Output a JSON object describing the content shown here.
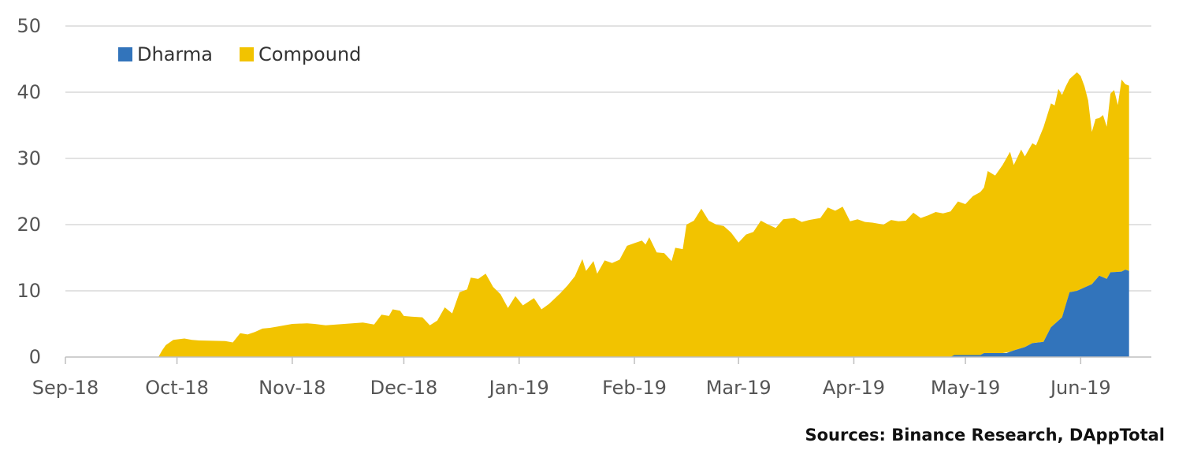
{
  "chart_data": {
    "type": "area",
    "stacked": true,
    "x_axis_labels": [
      "Sep-18",
      "Oct-18",
      "Nov-18",
      "Dec-18",
      "Jan-19",
      "Feb-19",
      "Mar-19",
      "Apr-19",
      "May-19",
      "Jun-19"
    ],
    "ylim": [
      0,
      50
    ],
    "y_ticks": [
      0,
      10,
      20,
      30,
      40,
      50
    ],
    "grid": true,
    "legend_position": "top-left",
    "colors": {
      "Dharma": "#3274bb",
      "Compound": "#f2c300"
    },
    "series": [
      {
        "name": "Dharma",
        "color": "#3274bb",
        "points": [
          [
            "2018-09-01",
            0
          ],
          [
            "2019-04-27",
            0
          ],
          [
            "2019-04-28",
            0.3
          ],
          [
            "2019-05-05",
            0.3
          ],
          [
            "2019-05-06",
            0.6
          ],
          [
            "2019-05-12",
            0.6
          ],
          [
            "2019-05-14",
            1.0
          ],
          [
            "2019-05-17",
            1.5
          ],
          [
            "2019-05-19",
            2.1
          ],
          [
            "2019-05-22",
            2.3
          ],
          [
            "2019-05-24",
            4.5
          ],
          [
            "2019-05-27",
            6.0
          ],
          [
            "2019-05-29",
            9.8
          ],
          [
            "2019-05-31",
            10.0
          ],
          [
            "2019-06-02",
            10.5
          ],
          [
            "2019-06-04",
            11.0
          ],
          [
            "2019-06-06",
            12.3
          ],
          [
            "2019-06-08",
            11.8
          ],
          [
            "2019-06-09",
            12.8
          ],
          [
            "2019-06-12",
            12.9
          ],
          [
            "2019-06-13",
            13.2
          ],
          [
            "2019-06-14",
            13.0
          ]
        ]
      },
      {
        "name": "Compound",
        "color": "#f2c300",
        "points": [
          [
            "2018-09-01",
            0
          ],
          [
            "2018-09-26",
            0
          ],
          [
            "2018-09-27",
            1.0
          ],
          [
            "2018-09-28",
            1.8
          ],
          [
            "2018-09-30",
            2.6
          ],
          [
            "2018-10-03",
            2.8
          ],
          [
            "2018-10-05",
            2.6
          ],
          [
            "2018-10-07",
            2.5
          ],
          [
            "2018-10-14",
            2.4
          ],
          [
            "2018-10-16",
            2.2
          ],
          [
            "2018-10-18",
            3.6
          ],
          [
            "2018-10-20",
            3.4
          ],
          [
            "2018-10-22",
            3.8
          ],
          [
            "2018-10-24",
            4.3
          ],
          [
            "2018-10-26",
            4.4
          ],
          [
            "2018-10-28",
            4.6
          ],
          [
            "2018-11-01",
            5.0
          ],
          [
            "2018-11-05",
            5.1
          ],
          [
            "2018-11-07",
            5.0
          ],
          [
            "2018-11-10",
            4.8
          ],
          [
            "2018-11-15",
            5.0
          ],
          [
            "2018-11-20",
            5.2
          ],
          [
            "2018-11-23",
            4.9
          ],
          [
            "2018-11-25",
            6.4
          ],
          [
            "2018-11-27",
            6.2
          ],
          [
            "2018-11-28",
            7.2
          ],
          [
            "2018-11-30",
            7.0
          ],
          [
            "2018-12-01",
            6.2
          ],
          [
            "2018-12-03",
            6.1
          ],
          [
            "2018-12-06",
            6.0
          ],
          [
            "2018-12-08",
            4.8
          ],
          [
            "2018-12-10",
            5.5
          ],
          [
            "2018-12-12",
            7.5
          ],
          [
            "2018-12-14",
            6.6
          ],
          [
            "2018-12-16",
            9.8
          ],
          [
            "2018-12-18",
            10.2
          ],
          [
            "2018-12-19",
            12.0
          ],
          [
            "2018-12-21",
            11.8
          ],
          [
            "2018-12-23",
            12.6
          ],
          [
            "2018-12-25",
            10.6
          ],
          [
            "2018-12-27",
            9.5
          ],
          [
            "2018-12-29",
            7.4
          ],
          [
            "2018-12-31",
            9.2
          ],
          [
            "2019-01-02",
            7.8
          ],
          [
            "2019-01-05",
            8.9
          ],
          [
            "2019-01-07",
            7.2
          ],
          [
            "2019-01-09",
            8.0
          ],
          [
            "2019-01-12",
            9.6
          ],
          [
            "2019-01-14",
            10.8
          ],
          [
            "2019-01-16",
            12.2
          ],
          [
            "2019-01-18",
            14.8
          ],
          [
            "2019-01-19",
            13.0
          ],
          [
            "2019-01-21",
            14.5
          ],
          [
            "2019-01-22",
            12.6
          ],
          [
            "2019-01-24",
            14.6
          ],
          [
            "2019-01-26",
            14.2
          ],
          [
            "2019-01-28",
            14.7
          ],
          [
            "2019-01-30",
            16.8
          ],
          [
            "2019-02-01",
            17.2
          ],
          [
            "2019-02-03",
            17.6
          ],
          [
            "2019-02-04",
            17.0
          ],
          [
            "2019-02-05",
            18.1
          ],
          [
            "2019-02-07",
            15.8
          ],
          [
            "2019-02-09",
            15.7
          ],
          [
            "2019-02-11",
            14.5
          ],
          [
            "2019-02-12",
            16.5
          ],
          [
            "2019-02-14",
            16.3
          ],
          [
            "2019-02-15",
            20.0
          ],
          [
            "2019-02-17",
            20.6
          ],
          [
            "2019-02-19",
            22.4
          ],
          [
            "2019-02-21",
            20.6
          ],
          [
            "2019-02-23",
            20.0
          ],
          [
            "2019-02-25",
            19.8
          ],
          [
            "2019-02-27",
            18.8
          ],
          [
            "2019-03-01",
            17.3
          ],
          [
            "2019-03-03",
            18.5
          ],
          [
            "2019-03-05",
            18.9
          ],
          [
            "2019-03-07",
            20.6
          ],
          [
            "2019-03-09",
            20.0
          ],
          [
            "2019-03-11",
            19.5
          ],
          [
            "2019-03-13",
            20.8
          ],
          [
            "2019-03-16",
            21.0
          ],
          [
            "2019-03-18",
            20.4
          ],
          [
            "2019-03-20",
            20.7
          ],
          [
            "2019-03-23",
            21.0
          ],
          [
            "2019-03-25",
            22.6
          ],
          [
            "2019-03-27",
            22.1
          ],
          [
            "2019-03-29",
            22.7
          ],
          [
            "2019-03-31",
            20.5
          ],
          [
            "2019-04-02",
            20.8
          ],
          [
            "2019-04-04",
            20.4
          ],
          [
            "2019-04-06",
            20.3
          ],
          [
            "2019-04-09",
            20.0
          ],
          [
            "2019-04-11",
            20.7
          ],
          [
            "2019-04-13",
            20.5
          ],
          [
            "2019-04-15",
            20.6
          ],
          [
            "2019-04-17",
            21.8
          ],
          [
            "2019-04-19",
            21.0
          ],
          [
            "2019-04-21",
            21.4
          ],
          [
            "2019-04-23",
            21.9
          ],
          [
            "2019-04-25",
            21.7
          ],
          [
            "2019-04-27",
            22.0
          ],
          [
            "2019-04-29",
            23.2
          ],
          [
            "2019-05-01",
            22.8
          ],
          [
            "2019-05-03",
            24.0
          ],
          [
            "2019-05-05",
            24.6
          ],
          [
            "2019-05-06",
            25.0
          ],
          [
            "2019-05-07",
            27.5
          ],
          [
            "2019-05-09",
            26.8
          ],
          [
            "2019-05-11",
            28.4
          ],
          [
            "2019-05-13",
            30.2
          ],
          [
            "2019-05-14",
            28.0
          ],
          [
            "2019-05-16",
            30.0
          ],
          [
            "2019-05-17",
            28.8
          ],
          [
            "2019-05-19",
            30.2
          ],
          [
            "2019-05-20",
            29.8
          ],
          [
            "2019-05-22",
            32.4
          ],
          [
            "2019-05-24",
            33.8
          ],
          [
            "2019-05-25",
            33.0
          ],
          [
            "2019-05-26",
            35.0
          ],
          [
            "2019-05-27",
            33.6
          ],
          [
            "2019-05-28",
            33.0
          ],
          [
            "2019-05-29",
            32.2
          ],
          [
            "2019-05-31",
            33.0
          ],
          [
            "2019-06-01",
            32.2
          ],
          [
            "2019-06-02",
            30.4
          ],
          [
            "2019-06-03",
            28.0
          ],
          [
            "2019-06-04",
            23.0
          ],
          [
            "2019-06-05",
            24.3
          ],
          [
            "2019-06-06",
            23.8
          ],
          [
            "2019-06-07",
            24.5
          ],
          [
            "2019-06-08",
            23.0
          ],
          [
            "2019-06-09",
            27.0
          ],
          [
            "2019-06-10",
            27.5
          ],
          [
            "2019-06-11",
            25.2
          ],
          [
            "2019-06-12",
            29.0
          ],
          [
            "2019-06-13",
            28.0
          ],
          [
            "2019-06-14",
            28.0
          ]
        ]
      }
    ]
  },
  "legend": [
    {
      "label": "Dharma",
      "color": "#3274bb"
    },
    {
      "label": "Compound",
      "color": "#f2c300"
    }
  ],
  "source_note": "Sources: Binance Research, DAppTotal"
}
